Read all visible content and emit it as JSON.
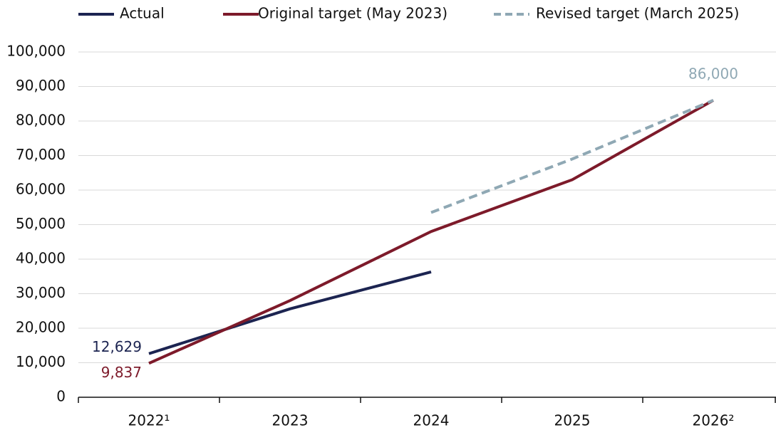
{
  "chart_data": {
    "type": "line",
    "categories": [
      "2022¹",
      "2023",
      "2024",
      "2025",
      "2026²"
    ],
    "series": [
      {
        "name": "Actual",
        "color": "#1c2451",
        "dash": false,
        "values": [
          12629,
          25600,
          36300,
          null,
          null
        ],
        "value_labels": [
          "12,629",
          null,
          null,
          null,
          null
        ]
      },
      {
        "name": "Original target (May 2023)",
        "color": "#7d1a2a",
        "dash": false,
        "values": [
          9837,
          28000,
          48000,
          63000,
          86000
        ],
        "value_labels": [
          "9,837",
          null,
          null,
          null,
          null
        ]
      },
      {
        "name": "Revised target (March 2025)",
        "color": "#8fa8b4",
        "dash": true,
        "values": [
          null,
          null,
          53500,
          69000,
          86000
        ],
        "value_labels": [
          null,
          null,
          null,
          null,
          "86,000"
        ]
      }
    ],
    "ylim": [
      0,
      100000
    ],
    "yticks": [
      0,
      {
        "value": 10000,
        "label": "10,000"
      },
      {
        "value": 20000,
        "label": "20,000"
      },
      {
        "value": 30000,
        "label": "30,000"
      },
      {
        "value": 40000,
        "label": "40,000"
      },
      {
        "value": 50000,
        "label": "50,000"
      },
      {
        "value": 60000,
        "label": "60,000"
      },
      {
        "value": 70000,
        "label": "70,000"
      },
      {
        "value": 80000,
        "label": "80,000"
      },
      {
        "value": 90000,
        "label": "90,000"
      },
      {
        "value": 100000,
        "label": "100,000"
      }
    ],
    "grid": true
  }
}
